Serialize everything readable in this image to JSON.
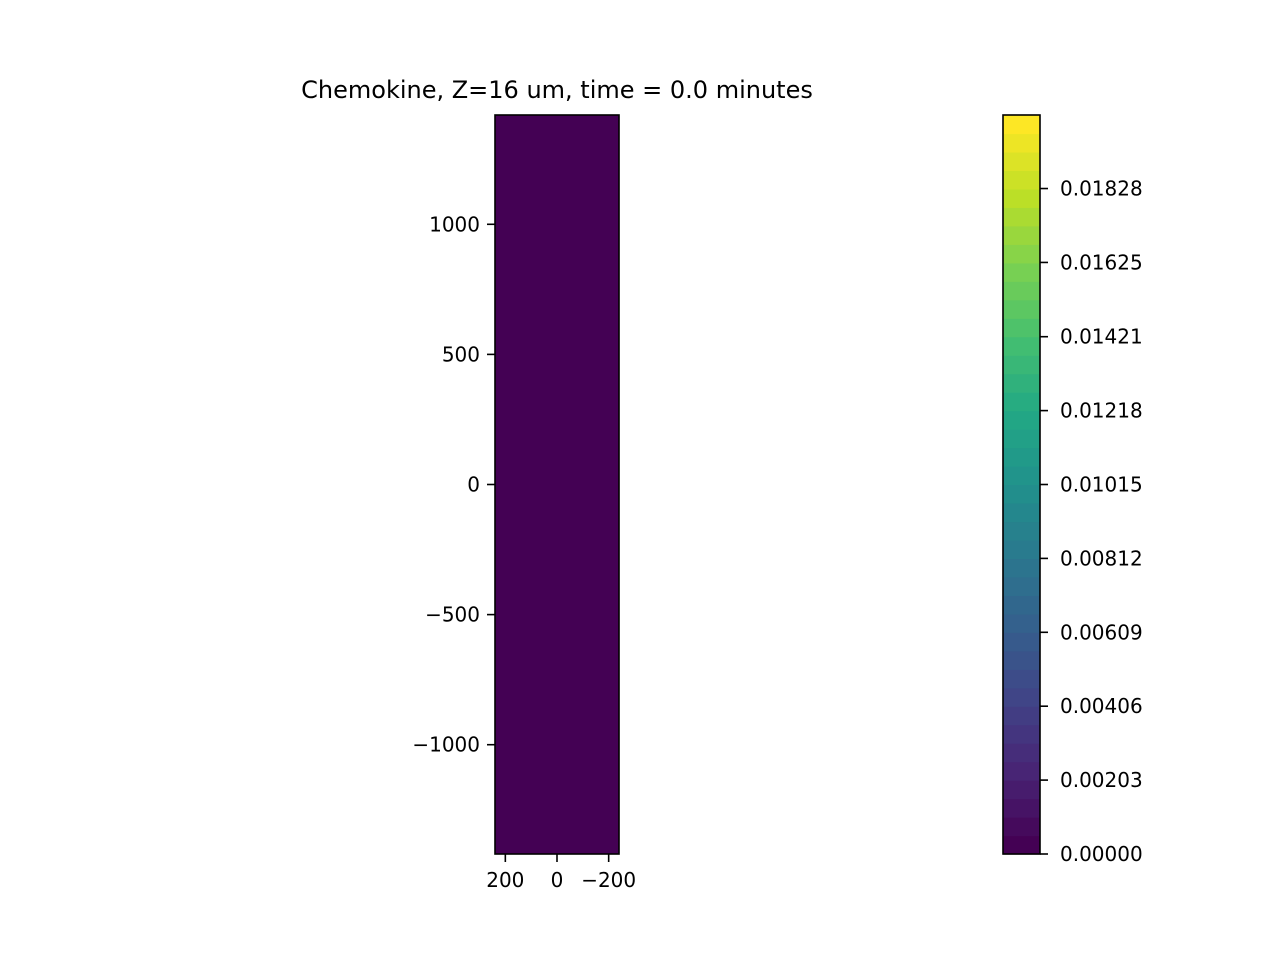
{
  "chart_data": {
    "type": "heatmap",
    "title": "Chemokine, Z=16 um, time = 0.0 minutes",
    "xlabel": "",
    "ylabel": "",
    "x_inverted": true,
    "xlim": [
      240,
      -240
    ],
    "ylim": [
      -1420,
      1420
    ],
    "x_ticks": [
      {
        "value": 200,
        "label": "200"
      },
      {
        "value": 0,
        "label": "0"
      },
      {
        "value": -200,
        "label": "−200"
      }
    ],
    "y_ticks": [
      {
        "value": 1000,
        "label": "1000"
      },
      {
        "value": 500,
        "label": "500"
      },
      {
        "value": 0,
        "label": "0"
      },
      {
        "value": -500,
        "label": "−500"
      },
      {
        "value": -1000,
        "label": "−1000"
      }
    ],
    "field_value": 0.0,
    "field_color": "#440154",
    "colormap": "viridis",
    "colorbar": {
      "range": [
        0.0,
        0.0203
      ],
      "levels": 40,
      "ticks": [
        {
          "value": 0.0,
          "label": "0.00000"
        },
        {
          "value": 0.00203,
          "label": "0.00203"
        },
        {
          "value": 0.00406,
          "label": "0.00406"
        },
        {
          "value": 0.00609,
          "label": "0.00609"
        },
        {
          "value": 0.00812,
          "label": "0.00812"
        },
        {
          "value": 0.01015,
          "label": "0.01015"
        },
        {
          "value": 0.01218,
          "label": "0.01218"
        },
        {
          "value": 0.01421,
          "label": "0.01421"
        },
        {
          "value": 0.01625,
          "label": "0.01625"
        },
        {
          "value": 0.01828,
          "label": "0.01828"
        }
      ]
    },
    "grid": false,
    "legend": "none"
  }
}
